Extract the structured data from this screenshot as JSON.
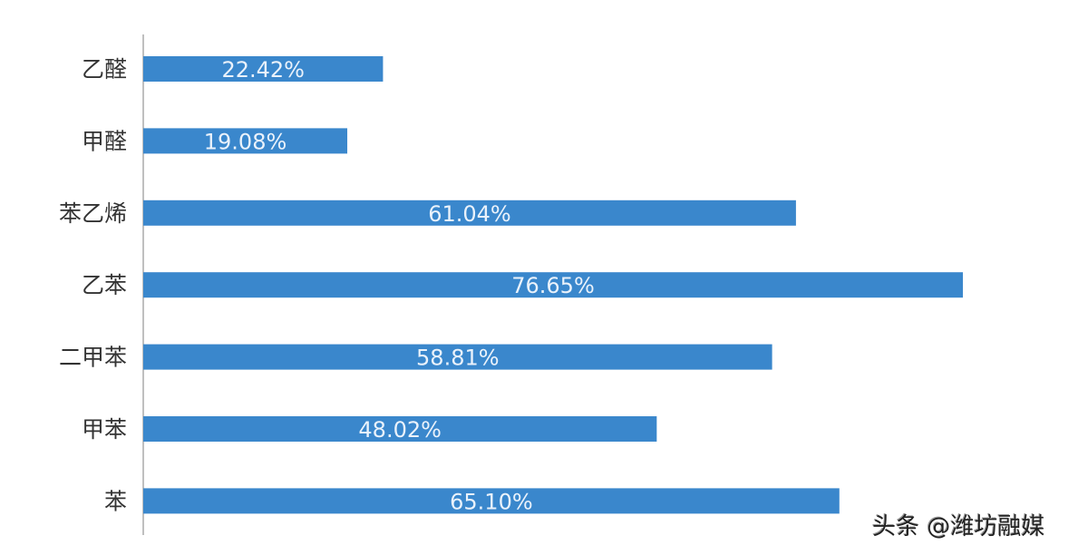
{
  "chart_data": {
    "type": "bar",
    "orientation": "horizontal",
    "categories": [
      "乙醛",
      "甲醛",
      "苯乙烯",
      "乙苯",
      "二甲苯",
      "甲苯",
      "苯"
    ],
    "values": [
      22.42,
      19.08,
      61.04,
      76.65,
      58.81,
      48.02,
      65.1
    ],
    "data_labels": [
      "22.42%",
      "19.08%",
      "61.04%",
      "76.65%",
      "58.81%",
      "48.02%",
      "65.10%"
    ],
    "unit": "%",
    "title": "",
    "xlabel": "",
    "ylabel": "",
    "xlim": [
      0,
      80
    ],
    "grid": false,
    "bar_color": "#3a87cc",
    "label_color": "#eaf2fb"
  },
  "watermark": "头条 @潍坊融媒"
}
